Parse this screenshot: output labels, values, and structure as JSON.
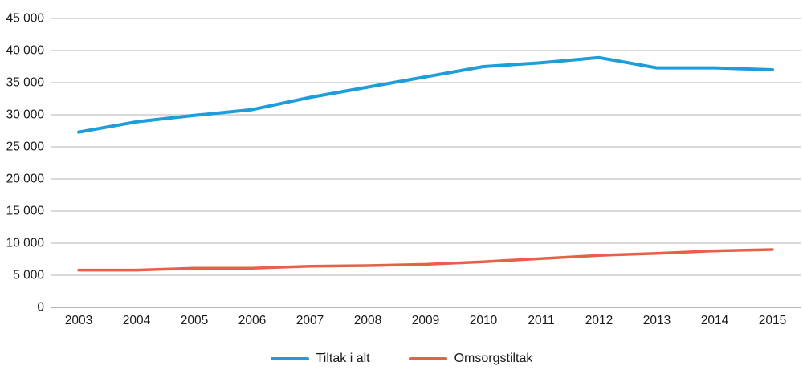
{
  "chart_data": {
    "type": "line",
    "title": "",
    "xlabel": "",
    "ylabel": "",
    "x": [
      2003,
      2004,
      2005,
      2006,
      2007,
      2008,
      2009,
      2010,
      2011,
      2012,
      2013,
      2014,
      2015
    ],
    "series": [
      {
        "name": "Tiltak i alt",
        "color": "#1d9dd9",
        "stroke_width": 4,
        "values": [
          27300,
          28900,
          29900,
          30800,
          32700,
          34300,
          35900,
          37500,
          38100,
          38900,
          37300,
          37300,
          37000
        ]
      },
      {
        "name": "Omsorgstiltak",
        "color": "#e8604a",
        "stroke_width": 3.5,
        "values": [
          5800,
          5800,
          6100,
          6100,
          6400,
          6500,
          6700,
          7100,
          7600,
          8100,
          8400,
          8800,
          9000
        ]
      }
    ],
    "ylim": [
      0,
      45000
    ],
    "ytick_step": 5000,
    "ytick_labels": [
      "0",
      "5 000",
      "10 000",
      "15 000",
      "20 000",
      "25 000",
      "30 000",
      "35 000",
      "40 000",
      "45 000"
    ],
    "grid": "horizontal",
    "legend_position": "bottom-center",
    "thousands_separator": " "
  }
}
